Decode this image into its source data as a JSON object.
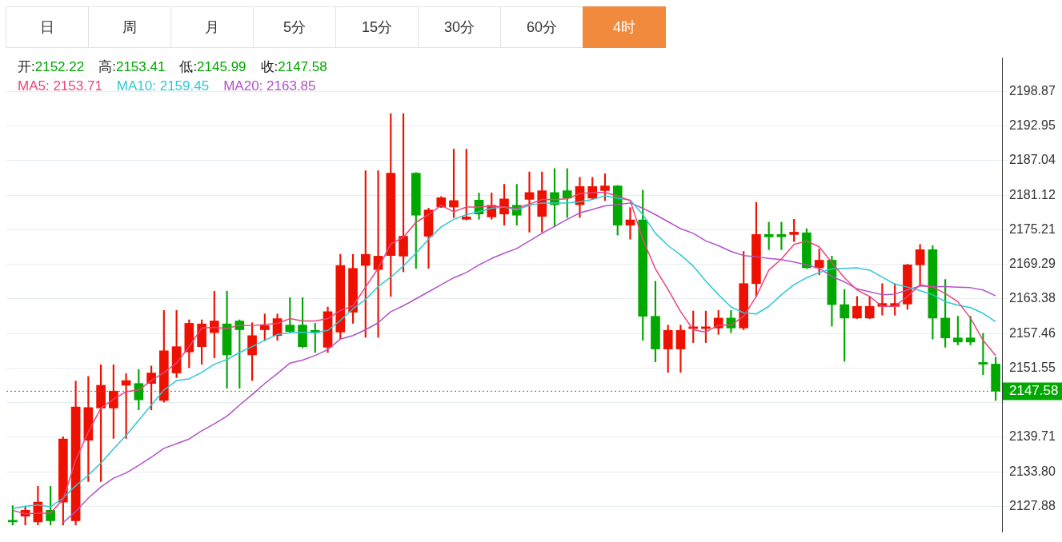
{
  "chart_data": {
    "type": "candlestick",
    "categories": [
      null,
      null,
      null,
      null,
      null,
      null,
      null,
      null,
      null,
      null,
      null,
      null,
      null,
      null,
      null,
      null,
      null,
      null,
      null,
      null,
      null,
      null,
      null,
      null,
      null,
      null,
      null,
      null,
      null,
      null,
      null,
      null,
      null,
      null,
      null,
      null,
      null,
      null,
      null,
      null,
      null,
      null,
      null,
      null,
      null,
      null,
      null,
      null,
      null,
      null,
      null,
      null,
      null,
      null,
      null,
      null,
      null,
      null,
      null,
      null,
      null,
      null,
      null,
      null,
      null,
      null,
      null,
      null,
      null,
      null,
      null,
      null,
      null,
      null,
      null,
      null,
      null,
      null,
      null
    ],
    "ohlc": [
      [
        2125.5,
        2128.0,
        2124.7,
        2125.2
      ],
      [
        2126.2,
        2127.8,
        2124.7,
        2127.2
      ],
      [
        2125.2,
        2131.3,
        2124.7,
        2128.6
      ],
      [
        2127.2,
        2131.3,
        2124.7,
        2125.4
      ],
      [
        2128.6,
        2139.8,
        2124.7,
        2139.4
      ],
      [
        2125.4,
        2149.3,
        2124.7,
        2144.9
      ],
      [
        2139.2,
        2150.1,
        2132.1,
        2144.8
      ],
      [
        2144.7,
        2152.1,
        2132.1,
        2148.6
      ],
      [
        2144.7,
        2152.1,
        2139.5,
        2147.6
      ],
      [
        2148.6,
        2150.6,
        2139.5,
        2149.4
      ],
      [
        2148.9,
        2151.3,
        2144.4,
        2146.1
      ],
      [
        2148.9,
        2151.9,
        2144.4,
        2150.7
      ],
      [
        2146.0,
        2161.4,
        2145.7,
        2154.5
      ],
      [
        2150.7,
        2161.4,
        2149.9,
        2155.2
      ],
      [
        2154.3,
        2159.8,
        2151.6,
        2159.2
      ],
      [
        2155.2,
        2159.8,
        2152.2,
        2159.1
      ],
      [
        2157.6,
        2164.7,
        2153.3,
        2159.6
      ],
      [
        2159.1,
        2164.7,
        2148.1,
        2153.8
      ],
      [
        2159.6,
        2159.8,
        2148.1,
        2158.1
      ],
      [
        2153.8,
        2159.3,
        2149.4,
        2157.1
      ],
      [
        2158.1,
        2160.8,
        2156.2,
        2158.8
      ],
      [
        2157.1,
        2160.8,
        2156.3,
        2160.0
      ],
      [
        2158.9,
        2163.6,
        2157.6,
        2157.8
      ],
      [
        2158.9,
        2163.6,
        2155.0,
        2155.2
      ],
      [
        2158.0,
        2159.2,
        2154.2,
        2157.6
      ],
      [
        2155.1,
        2162.0,
        2154.2,
        2161.2
      ],
      [
        2157.7,
        2171.0,
        2156.5,
        2169.1
      ],
      [
        2161.1,
        2171.0,
        2159.2,
        2168.6
      ],
      [
        2169.1,
        2185.3,
        2156.8,
        2171.0
      ],
      [
        2168.4,
        2185.3,
        2156.8,
        2170.7
      ],
      [
        2170.8,
        2195.1,
        2163.8,
        2184.9
      ],
      [
        2170.7,
        2195.1,
        2168.0,
        2174.1
      ],
      [
        2184.9,
        2185.0,
        2168.6,
        2177.7
      ],
      [
        2174.1,
        2178.9,
        2168.6,
        2178.6
      ],
      [
        2179.1,
        2180.9,
        2179.0,
        2180.7
      ],
      [
        2179.1,
        2189.0,
        2177.3,
        2180.2
      ],
      [
        2177.0,
        2189.0,
        2176.9,
        2177.4
      ],
      [
        2180.3,
        2181.5,
        2177.0,
        2177.9
      ],
      [
        2177.4,
        2181.5,
        2177.0,
        2179.4
      ],
      [
        2177.9,
        2183.0,
        2176.0,
        2180.5
      ],
      [
        2179.4,
        2183.0,
        2176.0,
        2177.7
      ],
      [
        2180.4,
        2185.1,
        2174.8,
        2181.6
      ],
      [
        2177.5,
        2185.1,
        2174.8,
        2181.9
      ],
      [
        2181.6,
        2185.7,
        2175.7,
        2179.5
      ],
      [
        2181.9,
        2185.7,
        2177.3,
        2180.6
      ],
      [
        2179.5,
        2184.2,
        2177.3,
        2182.6
      ],
      [
        2180.6,
        2184.2,
        2180.5,
        2182.6
      ],
      [
        2181.9,
        2184.8,
        2180.2,
        2182.7
      ],
      [
        2182.7,
        2182.8,
        2174.3,
        2176.0
      ],
      [
        2176.0,
        2179.0,
        2173.6,
        2176.9
      ],
      [
        2176.9,
        2182.0,
        2156.3,
        2160.4
      ],
      [
        2160.4,
        2166.4,
        2152.6,
        2154.8
      ],
      [
        2154.8,
        2158.9,
        2150.8,
        2158.0
      ],
      [
        2154.8,
        2158.9,
        2150.8,
        2158.0
      ],
      [
        2158.3,
        2161.3,
        2155.9,
        2158.6
      ],
      [
        2158.3,
        2161.3,
        2155.9,
        2158.6
      ],
      [
        2158.4,
        2161.4,
        2157.3,
        2160.1
      ],
      [
        2160.1,
        2161.4,
        2157.6,
        2158.4
      ],
      [
        2158.4,
        2171.5,
        2158.1,
        2166.0
      ],
      [
        2166.0,
        2179.9,
        2163.8,
        2174.4
      ],
      [
        2174.4,
        2176.5,
        2171.8,
        2174.0
      ],
      [
        2174.4,
        2176.5,
        2171.8,
        2174.0
      ],
      [
        2174.4,
        2177.0,
        2173.2,
        2174.8
      ],
      [
        2174.7,
        2175.4,
        2168.6,
        2168.7
      ],
      [
        2168.7,
        2171.9,
        2167.5,
        2170.0
      ],
      [
        2170.0,
        2170.7,
        2158.7,
        2162.4
      ],
      [
        2162.4,
        2165.0,
        2152.7,
        2160.1
      ],
      [
        2160.1,
        2163.8,
        2160.0,
        2162.1
      ],
      [
        2160.1,
        2163.8,
        2160.0,
        2162.1
      ],
      [
        2162.1,
        2166.0,
        2160.6,
        2162.6
      ],
      [
        2162.1,
        2166.0,
        2160.6,
        2162.6
      ],
      [
        2162.5,
        2169.3,
        2161.6,
        2169.2
      ],
      [
        2169.2,
        2172.7,
        2165.7,
        2171.8
      ],
      [
        2171.8,
        2172.5,
        2156.5,
        2160.1
      ],
      [
        2160.1,
        2166.7,
        2155.1,
        2156.7
      ],
      [
        2156.7,
        2160.4,
        2155.5,
        2156.0
      ],
      [
        2156.7,
        2160.4,
        2155.5,
        2156.0
      ],
      [
        2152.5,
        2157.5,
        2150.4,
        2152.2
      ],
      [
        2152.22,
        2153.41,
        2145.99,
        2147.58
      ]
    ],
    "colors": [
      "#00a800",
      "#ee1100",
      "#ee1100",
      "#00a800",
      "#ee1100",
      "#ee1100",
      "#ee1100",
      "#ee1100",
      "#ee1100",
      "#ee1100",
      "#00a800",
      "#ee1100",
      "#ee1100",
      "#ee1100",
      "#ee1100",
      "#ee1100",
      "#ee1100",
      "#00a800",
      "#00a800",
      "#ee1100",
      "#ee1100",
      "#ee1100",
      "#00a800",
      "#00a800",
      "#00a800",
      "#ee1100",
      "#ee1100",
      "#ee1100",
      "#ee1100",
      "#ee1100",
      "#ee1100",
      "#ee1100",
      "#00a800",
      "#ee1100",
      "#ee1100",
      "#ee1100",
      "#ee1100",
      "#00a800",
      "#ee1100",
      "#ee1100",
      "#00a800",
      "#ee1100",
      "#ee1100",
      "#00a800",
      "#00a800",
      "#ee1100",
      "#ee1100",
      "#ee1100",
      "#00a800",
      "#ee1100",
      "#00a800",
      "#00a800",
      "#ee1100",
      "#ee1100",
      "#ee1100",
      "#ee1100",
      "#ee1100",
      "#00a800",
      "#ee1100",
      "#ee1100",
      "#00a800",
      "#00a800",
      "#ee1100",
      "#00a800",
      "#ee1100",
      "#00a800",
      "#00a800",
      "#ee1100",
      "#ee1100",
      "#ee1100",
      "#ee1100",
      "#ee1100",
      "#ee1100",
      "#00a800",
      "#00a800",
      "#00a800",
      "#00a800",
      "#00a800",
      "#00a800"
    ],
    "series": [
      {
        "type": "line",
        "name": "MA5: 2153.71",
        "color": "#e8457c",
        "values": [
          2127.2,
          2126.6,
          2126.7,
          2126.7,
          2129.1,
          2135.8,
          2140.6,
          2144.7,
          2146.2,
          2147.5,
          2147.8,
          2149.4,
          2150.8,
          2152.4,
          2155.2,
          2158.4,
          2158.5,
          2158.3,
          2158.9,
          2158.8,
          2159.0,
          2159.2,
          2160.0,
          2159.6,
          2159.6,
          2160.0,
          2161.4,
          2162.2,
          2165.4,
          2168.6,
          2172.8,
          2173.9,
          2176.5,
          2177.8,
          2179.4,
          2178.3,
          2179.1,
          2179.1,
          2179.3,
          2179.1,
          2178.9,
          2179.6,
          2180.4,
          2180.4,
          2180.5,
          2181.4,
          2181.6,
          2181.6,
          2181.0,
          2180.2,
          2173.6,
          2168.5,
          2165.0,
          2161.2,
          2158.1,
          2157.7,
          2158.9,
          2158.9,
          2160.4,
          2163.8,
          2168.3,
          2170.2,
          2172.7,
          2173.3,
          2172.3,
          2169.6,
          2167.0,
          2164.9,
          2163.8,
          2162.1,
          2162.1,
          2163.8,
          2165.8,
          2165.4,
          2164.3,
          2162.9,
          2160.1,
          2156.3,
          2153.7
        ]
      },
      {
        "type": "line",
        "name": "MA10: 2159.45",
        "color": "#2ec7d6",
        "values": [
          2127.5,
          2127.9,
          2128.1,
          2127.8,
          2129.3,
          2131.4,
          2133.2,
          2135.3,
          2137.7,
          2140.0,
          2142.6,
          2145.2,
          2147.8,
          2149.4,
          2149.7,
          2150.8,
          2152.2,
          2153.0,
          2154.2,
          2155.2,
          2156.3,
          2157.3,
          2157.6,
          2157.7,
          2157.6,
          2158.0,
          2159.7,
          2161.7,
          2163.3,
          2165.5,
          2167.1,
          2169.0,
          2171.2,
          2173.6,
          2175.7,
          2177.0,
          2177.8,
          2178.3,
          2178.9,
          2179.1,
          2178.6,
          2179.4,
          2179.8,
          2179.8,
          2179.8,
          2180.0,
          2180.4,
          2181.0,
          2180.6,
          2180.3,
          2177.8,
          2174.6,
          2172.5,
          2170.9,
          2169.0,
          2166.4,
          2164.1,
          2162.0,
          2161.0,
          2160.8,
          2162.1,
          2164.1,
          2165.8,
          2167.0,
          2167.9,
          2168.5,
          2168.6,
          2168.7,
          2168.3,
          2167.1,
          2165.9,
          2165.4,
          2164.8,
          2164.1,
          2162.9,
          2162.3,
          2161.9,
          2160.9,
          2159.5
        ]
      },
      {
        "type": "line",
        "name": "MA20: 2163.85",
        "color": "#b152c8",
        "values": [
          null,
          null,
          null,
          null,
          2125.1,
          2127.0,
          2129.3,
          2131.2,
          2132.7,
          2133.6,
          2134.9,
          2136.3,
          2137.8,
          2138.6,
          2139.4,
          2140.8,
          2142.0,
          2143.3,
          2145.2,
          2147.0,
          2148.9,
          2150.6,
          2152.4,
          2152.9,
          2153.7,
          2154.7,
          2156.5,
          2157.1,
          2158.1,
          2159.3,
          2161.2,
          2162.2,
          2163.4,
          2164.6,
          2165.8,
          2167.0,
          2167.9,
          2169.2,
          2170.3,
          2171.2,
          2172.0,
          2173.3,
          2174.6,
          2175.8,
          2177.0,
          2178.1,
          2178.7,
          2179.3,
          2179.5,
          2179.8,
          2178.9,
          2177.8,
          2176.6,
          2175.4,
          2174.6,
          2173.3,
          2172.5,
          2171.5,
          2170.8,
          2170.6,
          2170.3,
          2170.1,
          2169.7,
          2169.2,
          2168.6,
          2167.2,
          2166.3,
          2165.1,
          2164.6,
          2164.1,
          2164.2,
          2164.9,
          2165.6,
          2165.5,
          2165.5,
          2165.4,
          2165.3,
          2164.9,
          2163.9
        ]
      }
    ],
    "ylim": [
      2123.5,
      2204.6
    ],
    "yticks": [
      2127.88,
      {
        "value": 2133.8,
        "label": "2133.80"
      },
      2139.71,
      {
        "value": 2145.63,
        "label": null
      },
      2151.55,
      2157.46,
      2163.38,
      2169.29,
      2175.21,
      2181.12,
      2187.04,
      2192.95,
      2198.87
    ],
    "tick_labels": "y",
    "grid": "y",
    "legend": "top left",
    "ref_lines": [
      {
        "axis": "y",
        "value": 2147.58,
        "label": "2147.58",
        "color": "#00a800",
        "line_style": "dotted"
      }
    ],
    "annotations": [
      "日",
      "周",
      "月",
      "5分",
      "15分",
      "30分",
      "60分",
      "4时",
      "开:2152.22",
      "高:2153.41",
      "低:2145.99",
      "收:2147.58"
    ]
  }
}
